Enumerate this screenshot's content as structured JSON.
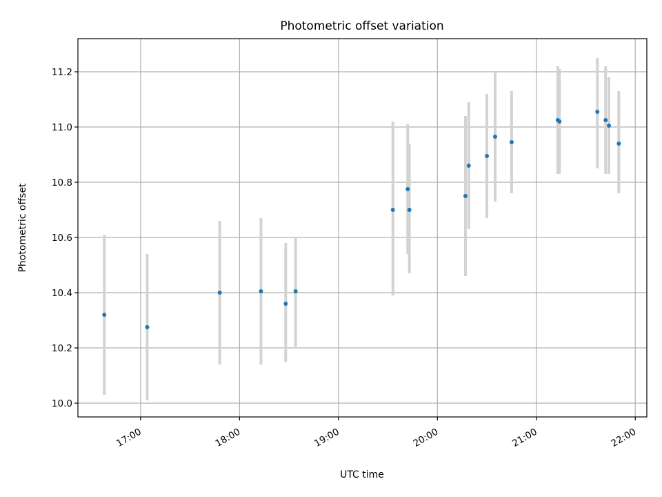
{
  "chart_data": {
    "type": "scatter",
    "title": "Photometric offset variation",
    "xlabel": "UTC time",
    "ylabel": "Photometric offset",
    "x_ticks": [
      "17:00",
      "18:00",
      "19:00",
      "20:00",
      "21:00",
      "22:00"
    ],
    "y_ticks": [
      "10.0",
      "10.2",
      "10.4",
      "10.6",
      "10.8",
      "11.0",
      "11.2"
    ],
    "ylim": [
      9.95,
      11.32
    ],
    "xlim": [
      "16:22",
      "22:07"
    ],
    "grid": true,
    "colors": {
      "point": "#1f77b4",
      "errorbar": "#d3d3d3",
      "grid": "#b0b0b0"
    },
    "points": [
      {
        "x": "16:38",
        "y": 10.32,
        "y_low": 10.03,
        "y_high": 10.61
      },
      {
        "x": "17:04",
        "y": 10.275,
        "y_low": 10.01,
        "y_high": 10.54
      },
      {
        "x": "17:48",
        "y": 10.4,
        "y_low": 10.14,
        "y_high": 10.66
      },
      {
        "x": "18:13",
        "y": 10.405,
        "y_low": 10.14,
        "y_high": 10.67
      },
      {
        "x": "18:28",
        "y": 10.36,
        "y_low": 10.15,
        "y_high": 10.58
      },
      {
        "x": "18:34",
        "y": 10.405,
        "y_low": 10.2,
        "y_high": 10.6
      },
      {
        "x": "19:33",
        "y": 10.7,
        "y_low": 10.39,
        "y_high": 11.02
      },
      {
        "x": "19:42",
        "y": 10.775,
        "y_low": 10.54,
        "y_high": 11.01
      },
      {
        "x": "19:43",
        "y": 10.7,
        "y_low": 10.47,
        "y_high": 10.94
      },
      {
        "x": "20:17",
        "y": 10.75,
        "y_low": 10.46,
        "y_high": 11.04
      },
      {
        "x": "20:19",
        "y": 10.86,
        "y_low": 10.63,
        "y_high": 11.09
      },
      {
        "x": "20:30",
        "y": 10.895,
        "y_low": 10.67,
        "y_high": 11.12
      },
      {
        "x": "20:35",
        "y": 10.965,
        "y_low": 10.73,
        "y_high": 11.2
      },
      {
        "x": "20:45",
        "y": 10.945,
        "y_low": 10.76,
        "y_high": 11.13
      },
      {
        "x": "21:13",
        "y": 11.025,
        "y_low": 10.83,
        "y_high": 11.22
      },
      {
        "x": "21:14",
        "y": 11.02,
        "y_low": 10.83,
        "y_high": 11.21
      },
      {
        "x": "21:37",
        "y": 11.055,
        "y_low": 10.85,
        "y_high": 11.25
      },
      {
        "x": "21:42",
        "y": 11.025,
        "y_low": 10.83,
        "y_high": 11.22
      },
      {
        "x": "21:44",
        "y": 11.005,
        "y_low": 10.83,
        "y_high": 11.18
      },
      {
        "x": "21:50",
        "y": 10.94,
        "y_low": 10.76,
        "y_high": 11.13
      }
    ]
  }
}
